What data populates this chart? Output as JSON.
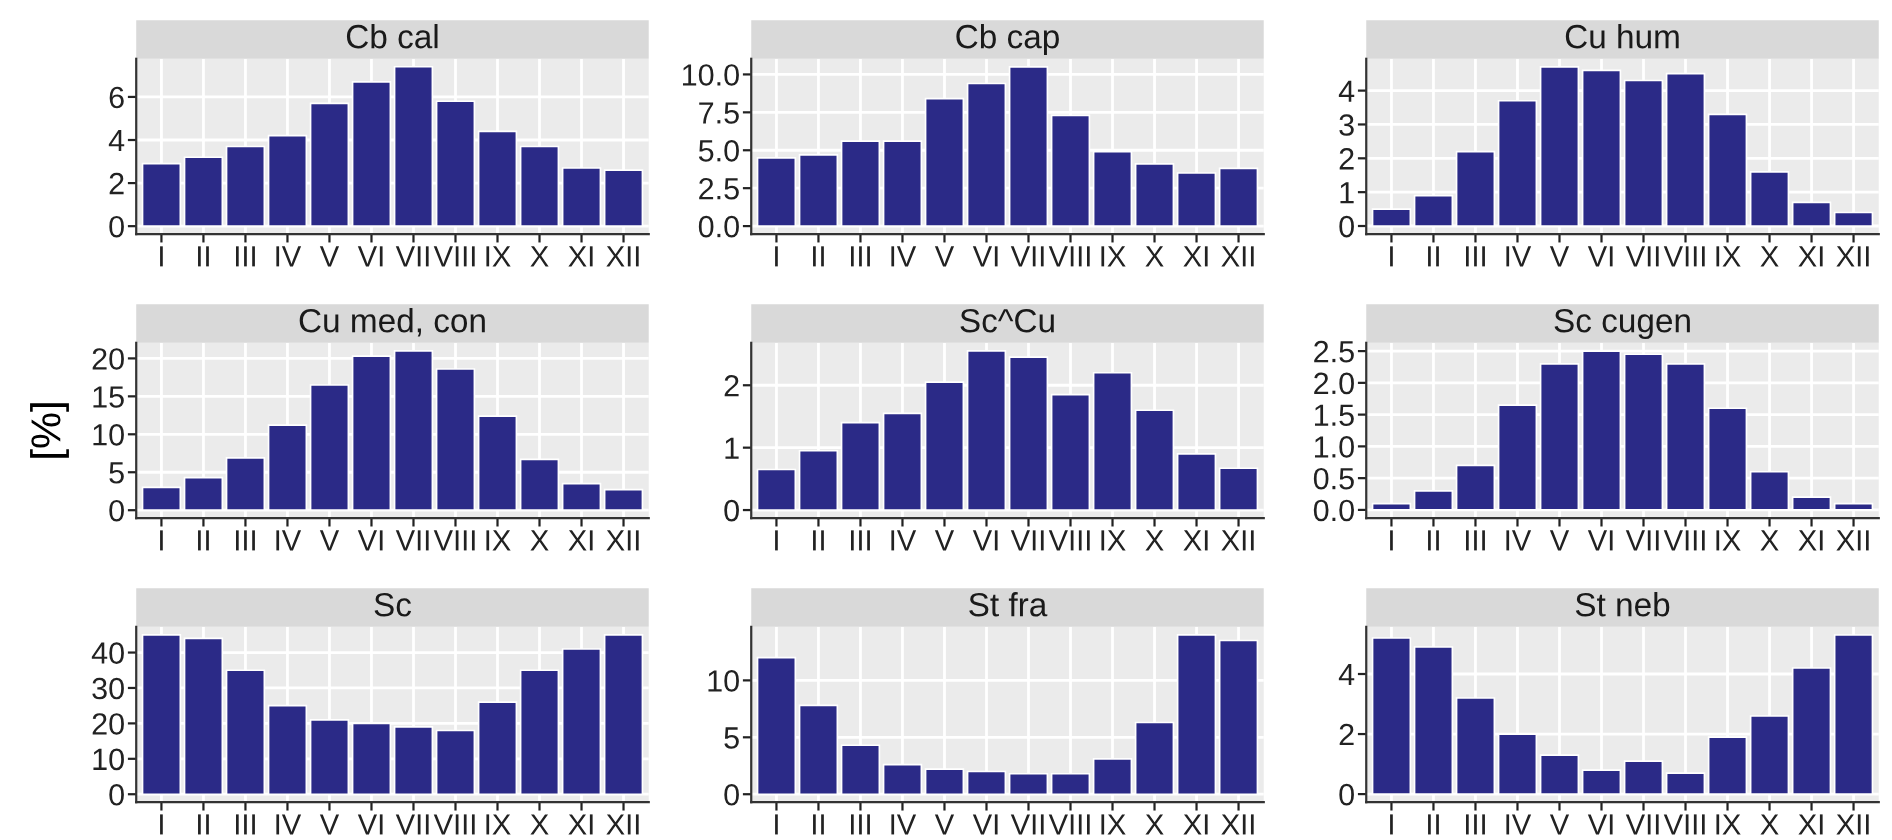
{
  "chart_data": [
    {
      "type": "bar",
      "title": "Cb cal",
      "categories": [
        "I",
        "II",
        "III",
        "IV",
        "V",
        "VI",
        "VII",
        "VIII",
        "IX",
        "X",
        "XI",
        "XII"
      ],
      "values": [
        2.9,
        3.2,
        3.7,
        4.2,
        5.7,
        6.7,
        7.4,
        5.8,
        4.4,
        3.7,
        2.7,
        2.6
      ],
      "color": "#2b2a87",
      "ylim": [
        -0.37,
        7.77
      ],
      "yticks": [
        0,
        2,
        4,
        6
      ],
      "grid": true
    },
    {
      "type": "bar",
      "title": "Cb cap",
      "categories": [
        "I",
        "II",
        "III",
        "IV",
        "V",
        "VI",
        "VII",
        "VIII",
        "IX",
        "X",
        "XI",
        "XII"
      ],
      "values": [
        4.5,
        4.7,
        5.6,
        5.6,
        8.4,
        9.4,
        10.5,
        7.3,
        4.9,
        4.1,
        3.5,
        3.8
      ],
      "color": "#2b2a87",
      "ylim": [
        -0.53,
        11.03
      ],
      "yticks": [
        {
          "value": 0,
          "label": "0.0"
        },
        {
          "value": 2.5,
          "label": "2.5"
        },
        {
          "value": 5,
          "label": "5.0"
        },
        {
          "value": 7.5,
          "label": "7.5"
        },
        {
          "value": 10,
          "label": "10.0"
        }
      ],
      "grid": true
    },
    {
      "type": "bar",
      "title": "Cu hum",
      "categories": [
        "I",
        "II",
        "III",
        "IV",
        "V",
        "VI",
        "VII",
        "VIII",
        "IX",
        "X",
        "XI",
        "XII"
      ],
      "values": [
        0.5,
        0.9,
        2.2,
        3.7,
        4.7,
        4.6,
        4.3,
        4.5,
        3.3,
        1.6,
        0.7,
        0.4
      ],
      "color": "#2b2a87",
      "ylim": [
        -0.24,
        4.94
      ],
      "yticks": [
        0,
        1,
        2,
        3,
        4
      ],
      "grid": true
    },
    {
      "type": "bar",
      "title": "Cu med, con",
      "ylabel": "[%]",
      "categories": [
        "I",
        "II",
        "III",
        "IV",
        "V",
        "VI",
        "VII",
        "VIII",
        "IX",
        "X",
        "XI",
        "XII"
      ],
      "values": [
        3,
        4.3,
        6.9,
        11.2,
        16.5,
        20.3,
        21,
        18.6,
        12.4,
        6.7,
        3.5,
        2.7
      ],
      "color": "#2b2a87",
      "ylim": [
        -1.05,
        22.05
      ],
      "yticks": [
        0,
        5,
        10,
        15,
        20
      ],
      "grid": true
    },
    {
      "type": "bar",
      "title": "Sc^Cu",
      "categories": [
        "I",
        "II",
        "III",
        "IV",
        "V",
        "VI",
        "VII",
        "VIII",
        "IX",
        "X",
        "XI",
        "XII"
      ],
      "values": [
        0.65,
        0.95,
        1.4,
        1.55,
        2.05,
        2.55,
        2.45,
        1.85,
        2.2,
        1.6,
        0.9,
        0.67
      ],
      "color": "#2b2a87",
      "ylim": [
        -0.13,
        2.68
      ],
      "yticks": [
        0,
        1,
        2
      ],
      "grid": true
    },
    {
      "type": "bar",
      "title": "Sc cugen",
      "categories": [
        "I",
        "II",
        "III",
        "IV",
        "V",
        "VI",
        "VII",
        "VIII",
        "IX",
        "X",
        "XI",
        "XII"
      ],
      "values": [
        0.1,
        0.3,
        0.7,
        1.65,
        2.3,
        2.5,
        2.45,
        2.3,
        1.6,
        0.6,
        0.2,
        0.1
      ],
      "color": "#2b2a87",
      "ylim": [
        -0.13,
        2.63
      ],
      "yticks": [
        {
          "value": 0,
          "label": "0.0"
        },
        {
          "value": 0.5,
          "label": "0.5"
        },
        {
          "value": 1,
          "label": "1.0"
        },
        {
          "value": 1.5,
          "label": "1.5"
        },
        {
          "value": 2,
          "label": "2.0"
        },
        {
          "value": 2.5,
          "label": "2.5"
        }
      ],
      "grid": true
    },
    {
      "type": "bar",
      "title": "Sc",
      "categories": [
        "I",
        "II",
        "III",
        "IV",
        "V",
        "VI",
        "VII",
        "VIII",
        "IX",
        "X",
        "XI",
        "XII"
      ],
      "values": [
        45,
        44,
        35,
        25,
        21,
        20,
        19,
        18,
        26,
        35,
        41,
        45
      ],
      "color": "#2b2a87",
      "ylim": [
        -2.25,
        47.25
      ],
      "yticks": [
        0,
        10,
        20,
        30,
        40
      ],
      "grid": true
    },
    {
      "type": "bar",
      "title": "St fra",
      "categories": [
        "I",
        "II",
        "III",
        "IV",
        "V",
        "VI",
        "VII",
        "VIII",
        "IX",
        "X",
        "XI",
        "XII"
      ],
      "values": [
        12,
        7.8,
        4.3,
        2.6,
        2.2,
        2.0,
        1.8,
        1.8,
        3.1,
        6.3,
        14,
        13.5
      ],
      "color": "#2b2a87",
      "ylim": [
        -0.7,
        14.7
      ],
      "yticks": [
        0,
        5,
        10
      ],
      "grid": true
    },
    {
      "type": "bar",
      "title": "St neb",
      "categories": [
        "I",
        "II",
        "III",
        "IV",
        "V",
        "VI",
        "VII",
        "VIII",
        "IX",
        "X",
        "XI",
        "XII"
      ],
      "values": [
        5.2,
        4.9,
        3.2,
        2.0,
        1.3,
        0.8,
        1.1,
        0.7,
        1.9,
        2.6,
        4.2,
        5.3
      ],
      "color": "#2b2a87",
      "ylim": [
        -0.27,
        5.57
      ],
      "yticks": [
        0,
        2,
        4
      ],
      "grid": true
    }
  ]
}
